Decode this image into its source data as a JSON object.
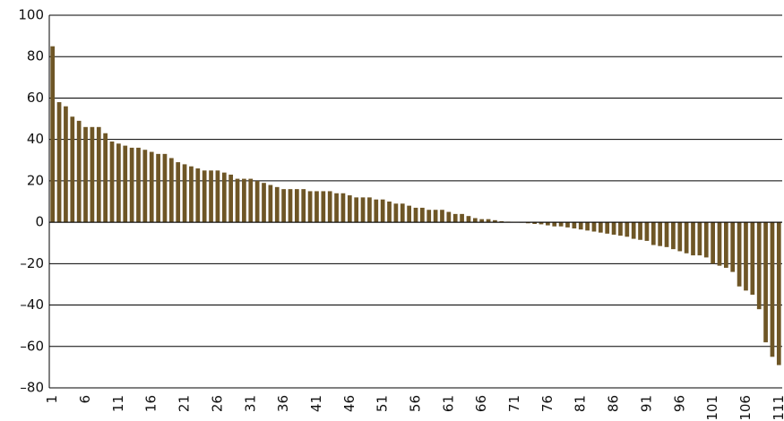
{
  "chart_data": {
    "type": "bar",
    "categories": [
      "1",
      null,
      null,
      null,
      null,
      "6",
      null,
      null,
      null,
      null,
      "11",
      null,
      null,
      null,
      null,
      "16",
      null,
      null,
      null,
      null,
      "21",
      null,
      null,
      null,
      null,
      "26",
      null,
      null,
      null,
      null,
      "31",
      null,
      null,
      null,
      null,
      "36",
      null,
      null,
      null,
      null,
      "41",
      null,
      null,
      null,
      null,
      "46",
      null,
      null,
      null,
      null,
      "51",
      null,
      null,
      null,
      null,
      "56",
      null,
      null,
      null,
      null,
      "61",
      null,
      null,
      null,
      null,
      "66",
      null,
      null,
      null,
      null,
      "71",
      null,
      null,
      null,
      null,
      "76",
      null,
      null,
      null,
      null,
      "81",
      null,
      null,
      null,
      null,
      "86",
      null,
      null,
      null,
      null,
      "91",
      null,
      null,
      null,
      null,
      "96",
      null,
      null,
      null,
      null,
      "101",
      null,
      null,
      null,
      null,
      "106",
      null,
      null,
      null,
      null,
      "111"
    ],
    "values": [
      85,
      58,
      56,
      51,
      49,
      46,
      46,
      46,
      43,
      39,
      38,
      37,
      36,
      36,
      35,
      34,
      33,
      33,
      31,
      29,
      28,
      27,
      26,
      25,
      25,
      25,
      24,
      23,
      21,
      21,
      21,
      20,
      19,
      18,
      17,
      16,
      16,
      16,
      16,
      15,
      15,
      15,
      15,
      14,
      14,
      13,
      12,
      12,
      12,
      11,
      11,
      10,
      9,
      9,
      8,
      7,
      7,
      6,
      6,
      6,
      5,
      4,
      4,
      3,
      2,
      1.5,
      1.5,
      1,
      0.5,
      0.3,
      0.2,
      -0.2,
      -0.5,
      -0.8,
      -1,
      -1.5,
      -2,
      -2,
      -2.5,
      -3,
      -3.5,
      -4,
      -4.5,
      -5,
      -5.5,
      -6,
      -6.5,
      -7,
      -8,
      -8.5,
      -9,
      -11,
      -11.5,
      -12,
      -13,
      -14,
      -15,
      -16,
      -16,
      -17,
      -20,
      -21,
      -22,
      -24,
      -31,
      -33,
      -35,
      -42,
      -58,
      -65,
      -69
    ],
    "color": "#6e5626",
    "ylim": [
      -80,
      100
    ],
    "yticks": [
      {
        "value": -80,
        "label": "–80"
      },
      {
        "value": -60,
        "label": "–60"
      },
      {
        "value": -40,
        "label": "–40"
      },
      {
        "value": -20,
        "label": "–20"
      },
      0,
      20,
      40,
      60,
      80,
      100
    ],
    "grid": true
  }
}
